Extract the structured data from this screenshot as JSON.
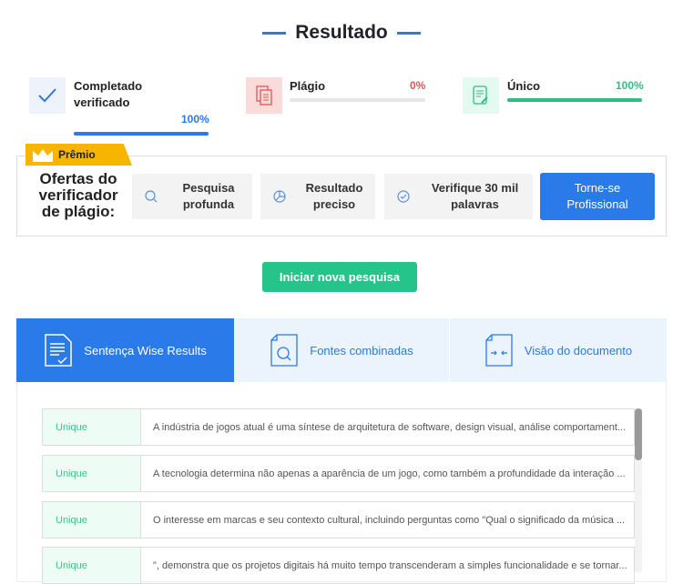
{
  "title": "Resultado",
  "stats": [
    {
      "label_line1": "Completado",
      "label_line2": "verificado",
      "percent": "100%",
      "value": 100,
      "color": "#2a7ae9",
      "icon": "check-icon"
    },
    {
      "label": "Plágio",
      "percent": "0%",
      "value": 0,
      "color": "#e05555",
      "icon": "copy-document-icon"
    },
    {
      "label": "Único",
      "percent": "100%",
      "value": 100,
      "color": "#2dbf82",
      "icon": "edit-document-icon"
    }
  ],
  "premium": {
    "tag": "Prêmio",
    "heading": [
      "Ofertas do",
      "verificador",
      "de plágio:"
    ],
    "offers": [
      {
        "line1": "Pesquisa",
        "line2": "profunda",
        "icon": "search-icon"
      },
      {
        "line1": "Resultado",
        "line2": "preciso",
        "icon": "pie-chart-icon"
      },
      {
        "line1": "Verifique 30 mil",
        "line2": "palavras",
        "icon": "check-circle-icon"
      }
    ],
    "cta_line1": "Torne-se",
    "cta_line2": "Profissional"
  },
  "new_search": "Iniciar nova pesquisa",
  "tabs": [
    {
      "label": "Sentença Wise Results",
      "active": true
    },
    {
      "label": "Fontes combinadas",
      "active": false
    },
    {
      "label": "Visão do documento",
      "active": false
    }
  ],
  "rows": [
    {
      "status": "Unique",
      "text": "A indústria de jogos atual é uma síntese de arquitetura de software, design visual, análise comportament..."
    },
    {
      "status": "Unique",
      "text": "A tecnologia determina não apenas a aparência de um jogo, como também a profundidade da interação ..."
    },
    {
      "status": "Unique",
      "text": "O interesse em marcas e seu contexto cultural, incluindo perguntas como \"Qual o significado da música ..."
    },
    {
      "status": "Unique",
      "text": "\", demonstra que os projetos digitais há muito tempo transcenderam a simples funcionalidade e se tornar..."
    }
  ]
}
